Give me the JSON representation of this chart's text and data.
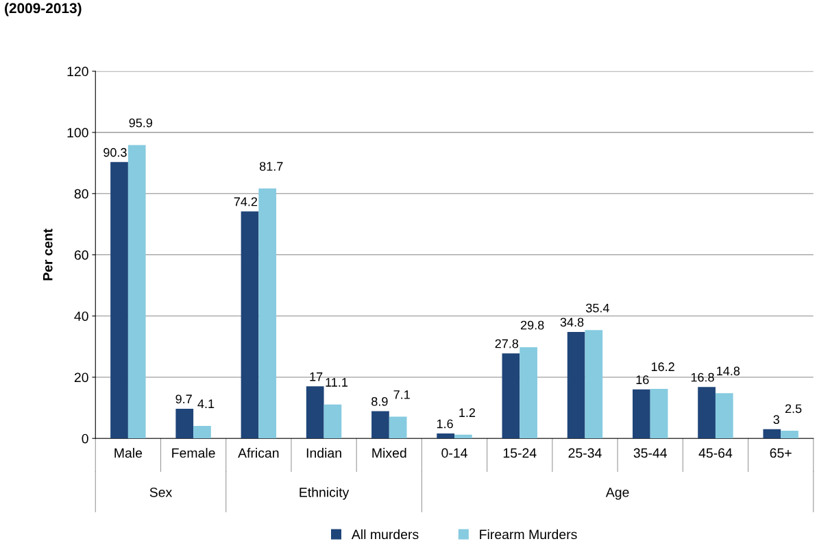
{
  "chart_data": {
    "type": "bar",
    "title": "(2009-2013)",
    "ylabel": "Per cent",
    "categories": [
      "Male",
      "Female",
      "African",
      "Indian",
      "Mixed",
      "0-14",
      "15-24",
      "25-34",
      "35-44",
      "45-64",
      "65+"
    ],
    "series": [
      {
        "name": "All murders",
        "color": "#1f4579",
        "values": [
          90.3,
          9.7,
          74.2,
          17,
          8.9,
          1.6,
          27.8,
          34.8,
          16,
          16.8,
          3
        ]
      },
      {
        "name": "Firearm Murders",
        "color": "#86cbe0",
        "values": [
          95.9,
          4.1,
          81.7,
          11.1,
          7.1,
          1.2,
          29.8,
          35.4,
          16.2,
          14.8,
          2.5
        ]
      }
    ],
    "annotations": [
      "Sex",
      "Ethnicity",
      "Age"
    ],
    "ylim": [
      0,
      120
    ],
    "yticks": [
      0,
      20,
      40,
      60,
      80,
      100,
      120
    ],
    "grid": "y",
    "data_labels": true,
    "legend": "bottom"
  }
}
